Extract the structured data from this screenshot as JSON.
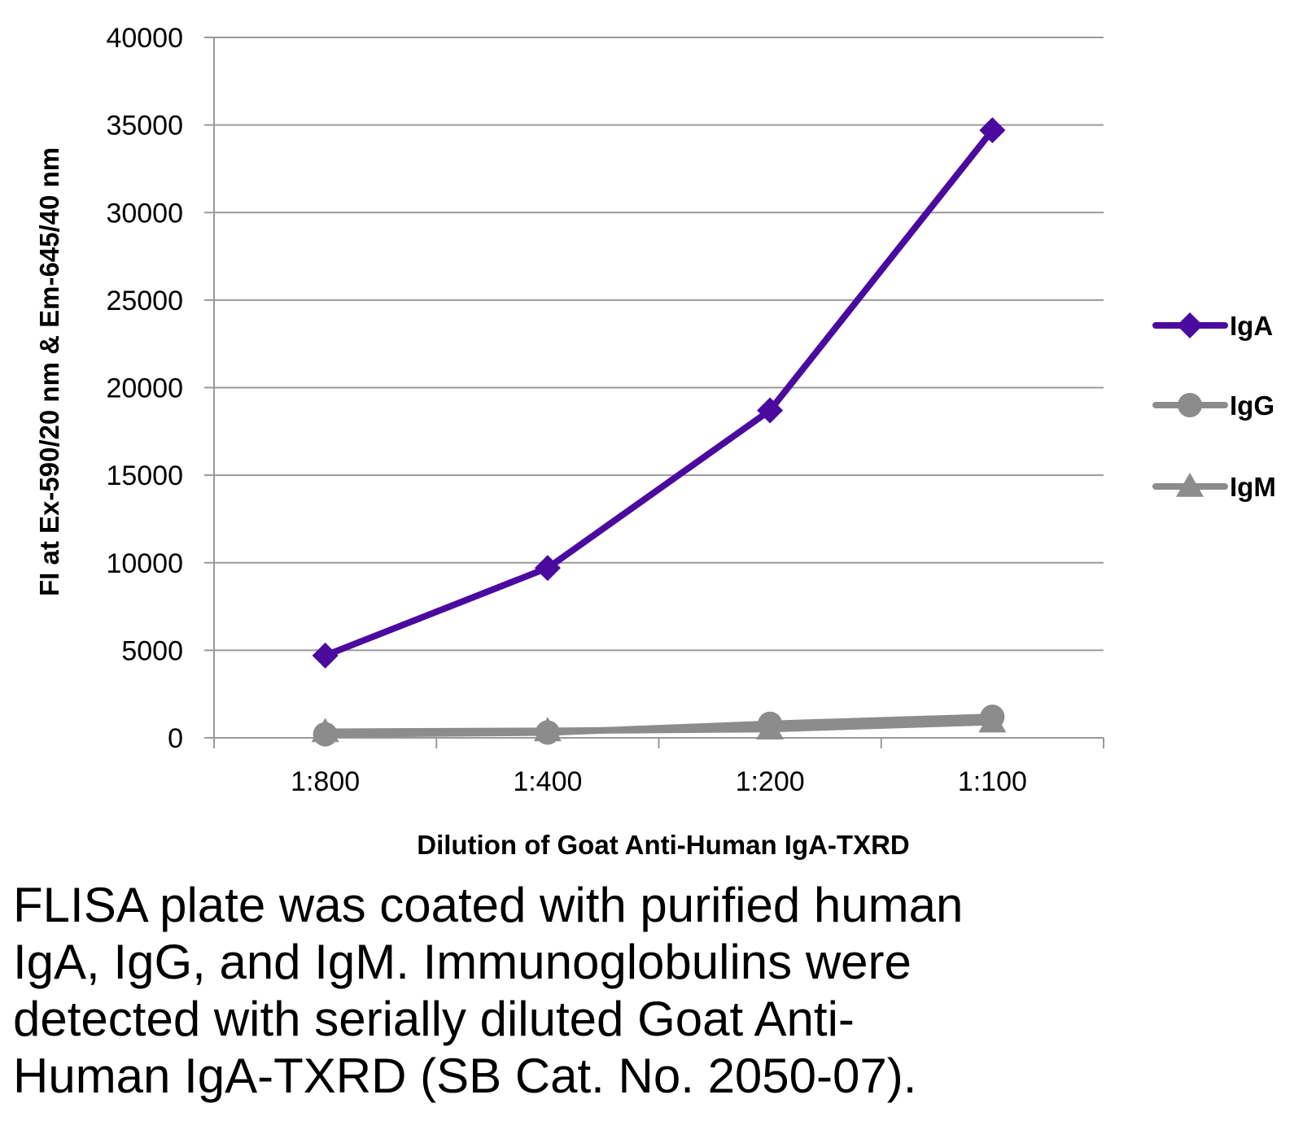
{
  "chart_data": {
    "type": "line",
    "categories": [
      "1:800",
      "1:400",
      "1:200",
      "1:100"
    ],
    "series": [
      {
        "name": "IgA",
        "values": [
          4700,
          9700,
          18700,
          34700
        ],
        "color": "#4B0A9F",
        "marker": "diamond"
      },
      {
        "name": "IgG",
        "values": [
          200,
          300,
          800,
          1200
        ],
        "color": "#8C8C8C",
        "marker": "circle"
      },
      {
        "name": "IgM",
        "values": [
          350,
          400,
          500,
          900
        ],
        "color": "#8C8C8C",
        "marker": "triangle"
      }
    ],
    "xlabel": "Dilution of Goat Anti-Human IgA-TXRD",
    "ylabel": "FI at Ex-590/20 nm & Em-645/40 nm",
    "ylim": [
      0,
      40000
    ],
    "yticks": [
      "0",
      "5000",
      "10000",
      "15000",
      "20000",
      "25000",
      "30000",
      "35000",
      "40000"
    ],
    "grid": true,
    "legend_position": "right"
  },
  "caption_lines": [
    "FLISA plate was coated with purified human",
    "IgA, IgG, and IgM.  Immunoglobulins were",
    "detected with serially diluted Goat Anti-",
    "Human IgA-TXRD (SB Cat. No. 2050-07)."
  ]
}
